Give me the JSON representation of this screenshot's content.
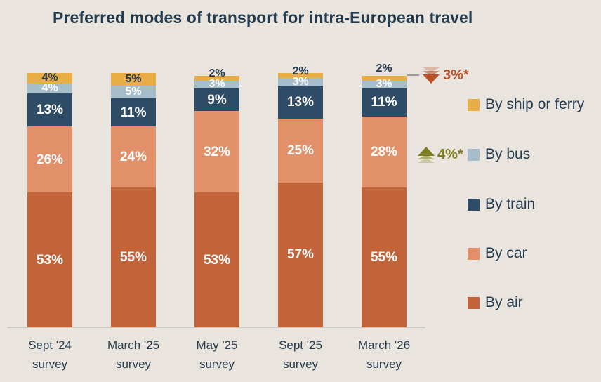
{
  "title": "Preferred modes of transport for intra-European travel",
  "colors": {
    "background": "#E9E5DE",
    "title_text": "#233B4F",
    "axis_line": "#CBC8C1",
    "xlabel_text": "#2A3E50",
    "legend_text": "#243B50",
    "annotation_down": "#BC5127",
    "annotation_up": "#7F7D20",
    "connector": "#9B9B96"
  },
  "chart_data": {
    "type": "bar",
    "stacked": true,
    "unit": "%",
    "ylim": [
      0,
      100
    ],
    "grid": false,
    "legend_position": "right",
    "stack_order": "top-to-bottom",
    "categories": [
      [
        "Sept '24",
        "survey"
      ],
      [
        "March '25",
        "survey"
      ],
      [
        "May '25",
        "survey"
      ],
      [
        "Sept '25",
        "survey"
      ],
      [
        "March '26",
        "survey"
      ]
    ],
    "series": [
      {
        "name": "By ship or ferry",
        "color": "#E8AD45",
        "label_color": "#243B50",
        "values": [
          4,
          5,
          2,
          2,
          2
        ]
      },
      {
        "name": "By bus",
        "color": "#A6BECC",
        "label_color": "#FFFFFF",
        "values": [
          4,
          5,
          3,
          3,
          3
        ]
      },
      {
        "name": "By train",
        "color": "#2E4C66",
        "label_color": "#FFFFFF",
        "values": [
          13,
          11,
          9,
          13,
          11
        ]
      },
      {
        "name": "By car",
        "color": "#E29069",
        "label_color": "#FFFFFF",
        "values": [
          26,
          24,
          32,
          25,
          28
        ]
      },
      {
        "name": "By air",
        "color": "#C1643A",
        "label_color": "#FFFFFF",
        "values": [
          53,
          55,
          53,
          57,
          55
        ]
      }
    ],
    "annotations": [
      {
        "text": "3%*",
        "arrow": "down",
        "color": "#BC5127",
        "anchor": "top of March '26 bar"
      },
      {
        "text": "4%*",
        "arrow": "up",
        "color": "#7F7D20",
        "anchor": "beside By bus legend item"
      }
    ]
  }
}
